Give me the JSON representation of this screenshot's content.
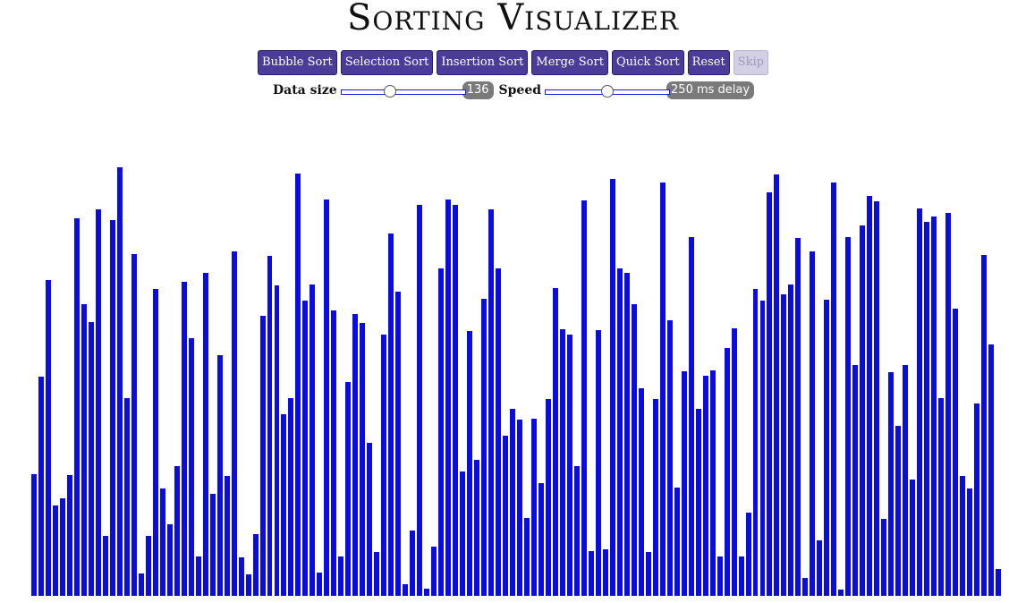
{
  "title": "Sorting Visualizer",
  "buttons": {
    "bubble": "Bubble Sort",
    "selection": "Selection Sort",
    "insertion": "Insertion Sort",
    "merge": "Merge Sort",
    "quick": "Quick Sort",
    "reset": "Reset",
    "skip": "Skip"
  },
  "controls": {
    "data_size_label": "Data size",
    "data_size_value": "136",
    "data_size_fraction": 0.38,
    "speed_label": "Speed",
    "speed_value": "250 ms delay",
    "speed_fraction": 0.5
  },
  "colors": {
    "bar": "#0b0be6",
    "button": "#4b3c99"
  },
  "bars": {
    "max": 480,
    "values": [
      136,
      245,
      353,
      101,
      109,
      135,
      422,
      326,
      306,
      432,
      67,
      420,
      479,
      221,
      382,
      25,
      67,
      343,
      120,
      80,
      145,
      351,
      288,
      44,
      361,
      114,
      269,
      134,
      385,
      43,
      24,
      69,
      313,
      380,
      347,
      203,
      221,
      472,
      330,
      348,
      26,
      443,
      319,
      44,
      239,
      315,
      305,
      171,
      49,
      292,
      405,
      340,
      13,
      73,
      437,
      8,
      55,
      366,
      443,
      437,
      139,
      296,
      152,
      332,
      432,
      366,
      179,
      209,
      197,
      87,
      198,
      126,
      220,
      344,
      298,
      292,
      145,
      442,
      50,
      297,
      52,
      466,
      366,
      361,
      326,
      232,
      49,
      220,
      462,
      308,
      121,
      251,
      401,
      209,
      246,
      252,
      44,
      277,
      299,
      44,
      93,
      343,
      330,
      451,
      471,
      337,
      348,
      400,
      20,
      385,
      62,
      331,
      462,
      7,
      401,
      258,
      414,
      447,
      441,
      86,
      250,
      190,
      258,
      130,
      433,
      418,
      424,
      221,
      428,
      321,
      134,
      120,
      215,
      381,
      281,
      30
    ]
  }
}
